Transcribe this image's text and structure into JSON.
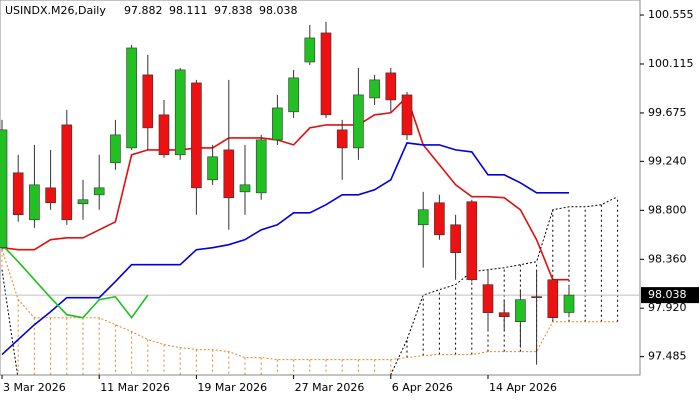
{
  "chart_data": {
    "type": "candlestick",
    "symbol": "USINDX.M26,Daily",
    "categories": [
      "3 Mar 2026",
      null,
      null,
      null,
      null,
      null,
      "11 Mar 2026",
      null,
      null,
      null,
      null,
      null,
      "19 Mar 2026",
      null,
      null,
      null,
      null,
      null,
      "27 Mar 2026",
      null,
      null,
      null,
      null,
      null,
      "6 Apr 2026",
      null,
      null,
      null,
      null,
      null,
      "14 Apr 2026",
      null,
      null,
      null,
      null,
      null,
      null,
      null,
      null
    ],
    "open": [
      98.464,
      99.137,
      98.715,
      99.002,
      99.568,
      98.859,
      98.939,
      99.227,
      99.361,
      100.017,
      99.658,
      99.299,
      99.945,
      99.074,
      99.343,
      98.966,
      98.957,
      99.433,
      99.685,
      100.133,
      100.394,
      99.523,
      99.361,
      99.81,
      100.035,
      99.837,
      98.67,
      98.868,
      98.67,
      98.877,
      98.132,
      97.88,
      97.799,
      98.024,
      98.176,
      97.882,
      null,
      null,
      null
    ],
    "high": [
      99.613,
      99.299,
      99.388,
      99.343,
      99.703,
      99.074,
      99.299,
      99.613,
      100.286,
      100.196,
      99.792,
      100.08,
      99.972,
      99.388,
      99.972,
      99.388,
      99.478,
      99.837,
      100.062,
      100.466,
      100.493,
      99.613,
      100.08,
      100.017,
      100.08,
      99.864,
      98.966,
      98.939,
      98.76,
      98.895,
      98.266,
      97.997,
      98.087,
      98.266,
      98.194,
      98.111,
      null,
      null,
      null
    ],
    "low": [
      98.446,
      98.697,
      98.643,
      98.805,
      98.67,
      98.715,
      98.805,
      99.164,
      99.343,
      99.343,
      99.272,
      99.254,
      98.76,
      99.029,
      98.625,
      98.76,
      98.895,
      99.388,
      99.631,
      100.106,
      99.631,
      99.074,
      99.254,
      99.747,
      99.685,
      99.433,
      98.284,
      98.536,
      98.176,
      98.159,
      97.71,
      97.728,
      97.566,
      97.413,
      97.817,
      97.838,
      null,
      null,
      null
    ],
    "close": [
      99.523,
      98.76,
      99.029,
      98.868,
      98.715,
      98.895,
      99.002,
      99.478,
      100.259,
      99.541,
      99.299,
      100.062,
      99.002,
      99.281,
      98.913,
      99.029,
      99.433,
      99.72,
      99.99,
      100.349,
      99.658,
      99.361,
      99.837,
      99.972,
      99.792,
      99.478,
      98.805,
      98.58,
      98.419,
      98.176,
      97.88,
      97.844,
      97.997,
      98.015,
      97.835,
      98.038,
      null,
      null,
      null
    ],
    "up_color": "#22c022",
    "down_color": "#ee1111",
    "lines": [
      {
        "color": "#e01010",
        "values": [
          98.464,
          98.446,
          98.446,
          98.536,
          98.553,
          98.553,
          98.625,
          98.697,
          99.299,
          99.343,
          99.343,
          99.343,
          99.361,
          99.361,
          99.451,
          99.451,
          99.451,
          99.433,
          99.388,
          99.541,
          99.568,
          99.568,
          99.568,
          99.658,
          99.676,
          99.819,
          99.388,
          99.209,
          99.029,
          98.922,
          98.922,
          98.913,
          98.805,
          98.536,
          98.176,
          98.176,
          null,
          null,
          null
        ]
      },
      {
        "color": "#0000e0",
        "values": [
          97.503,
          97.638,
          97.772,
          97.889,
          98.015,
          98.015,
          98.015,
          98.159,
          98.311,
          98.311,
          98.311,
          98.311,
          98.446,
          98.464,
          98.491,
          98.536,
          98.625,
          98.67,
          98.778,
          98.778,
          98.85,
          98.939,
          98.939,
          98.984,
          99.074,
          99.406,
          99.388,
          99.388,
          99.343,
          99.325,
          99.119,
          99.119,
          99.047,
          98.957,
          98.957,
          98.957,
          null,
          null,
          null
        ]
      },
      {
        "color": "#20c020",
        "values": [
          98.491,
          98.338,
          98.176,
          98.015,
          97.862,
          97.835,
          97.997,
          98.024,
          97.835,
          98.038,
          null,
          null,
          null,
          null,
          null,
          null,
          null,
          null,
          null,
          null,
          null,
          null,
          null,
          null,
          null,
          null,
          null,
          null,
          null,
          null,
          null,
          null,
          null,
          null,
          null,
          null,
          null,
          null,
          null
        ]
      }
    ],
    "cloud": {
      "span_a": {
        "color": "#f08020",
        "values": [
          98.446,
          97.997,
          97.835,
          97.835,
          97.835,
          97.835,
          97.835,
          97.772,
          97.71,
          97.638,
          97.593,
          97.566,
          97.548,
          97.548,
          97.53,
          97.476,
          97.476,
          97.458,
          97.458,
          97.458,
          97.458,
          97.458,
          97.458,
          97.458,
          97.458,
          97.476,
          97.494,
          97.503,
          97.503,
          97.503,
          97.53,
          97.53,
          97.53,
          97.53,
          97.799,
          97.799,
          97.799,
          97.799,
          97.799
        ]
      },
      "span_b": {
        "color": "#000000",
        "values": [
          98.266,
          97.279,
          97.279,
          97.279,
          97.279,
          97.279,
          97.279,
          97.279,
          97.279,
          97.279,
          97.279,
          97.279,
          97.279,
          97.279,
          97.279,
          97.279,
          97.279,
          97.279,
          97.279,
          97.279,
          97.279,
          97.279,
          97.279,
          97.279,
          97.324,
          97.638,
          98.038,
          98.087,
          98.132,
          98.248,
          98.266,
          98.284,
          98.311,
          98.338,
          98.805,
          98.832,
          98.832,
          98.85,
          98.922
        ]
      }
    },
    "ylim": [
      97.32,
      100.69
    ],
    "yticks": [
      100.555,
      100.115,
      99.675,
      {
        "value": 99.24,
        "label": "99.240"
      },
      {
        "value": 98.8,
        "label": "98.800"
      },
      {
        "value": 98.36,
        "label": "98.360"
      },
      {
        "value": 97.92,
        "label": "97.920"
      },
      97.485
    ]
  }
}
